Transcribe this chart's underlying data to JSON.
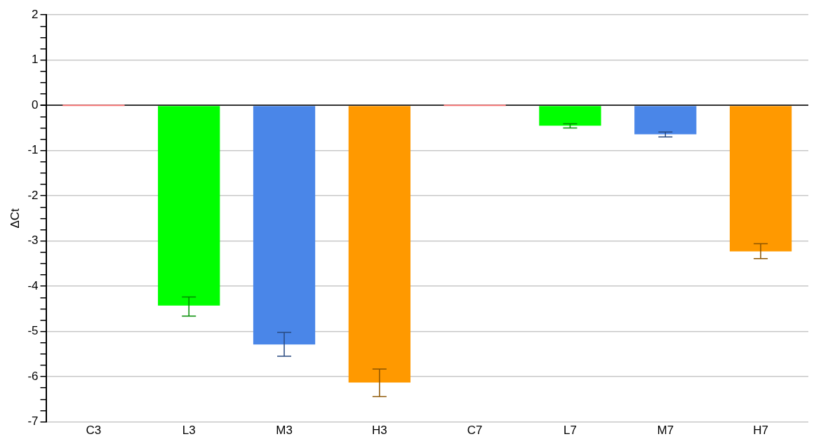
{
  "chart_data": {
    "type": "bar",
    "ylabel": "ΔCt",
    "categories": [
      "C3",
      "L3",
      "M3",
      "H3",
      "C7",
      "L7",
      "M7",
      "H7"
    ],
    "values": [
      0,
      -4.43,
      -5.29,
      -6.13,
      0,
      -0.45,
      -0.64,
      -3.23
    ],
    "colors": [
      "#ff8080",
      "#00ff00",
      "#4a86e8",
      "#ff9900",
      "#ff8080",
      "#00ff00",
      "#4a86e8",
      "#ff9900"
    ],
    "errors": [
      null,
      [
        -4.66,
        -4.24
      ],
      [
        -5.55,
        -5.02
      ],
      [
        -6.44,
        -5.83
      ],
      null,
      [
        -0.5,
        -0.41
      ],
      [
        -0.7,
        -0.59
      ],
      [
        -3.39,
        -3.06
      ]
    ],
    "ylim": [
      -7,
      2
    ],
    "yticks": [
      -7,
      {
        "value": -6.75,
        "label": null
      },
      {
        "value": -6.5,
        "label": null
      },
      {
        "value": -6.25,
        "label": null
      },
      -6,
      {
        "value": -5.75,
        "label": null
      },
      {
        "value": -5.5,
        "label": null
      },
      {
        "value": -5.25,
        "label": null
      },
      -5,
      {
        "value": -4.75,
        "label": null
      },
      {
        "value": -4.5,
        "label": null
      },
      {
        "value": -4.25,
        "label": null
      },
      -4,
      {
        "value": -3.75,
        "label": null
      },
      {
        "value": -3.5,
        "label": null
      },
      {
        "value": -3.25,
        "label": null
      },
      -3,
      {
        "value": -2.75,
        "label": null
      },
      {
        "value": -2.5,
        "label": null
      },
      {
        "value": -2.25,
        "label": null
      },
      -2,
      {
        "value": -1.75,
        "label": null
      },
      {
        "value": -1.5,
        "label": null
      },
      {
        "value": -1.25,
        "label": null
      },
      -1,
      {
        "value": -0.75,
        "label": null
      },
      {
        "value": -0.5,
        "label": null
      },
      {
        "value": -0.25,
        "label": null
      },
      0,
      {
        "value": 0.25,
        "label": null
      },
      {
        "value": 0.5,
        "label": null
      },
      {
        "value": 0.75,
        "label": null
      },
      1,
      {
        "value": 1.25,
        "label": null
      },
      {
        "value": 1.5,
        "label": null
      },
      {
        "value": 1.75,
        "label": null
      },
      2
    ],
    "grid": "y"
  }
}
